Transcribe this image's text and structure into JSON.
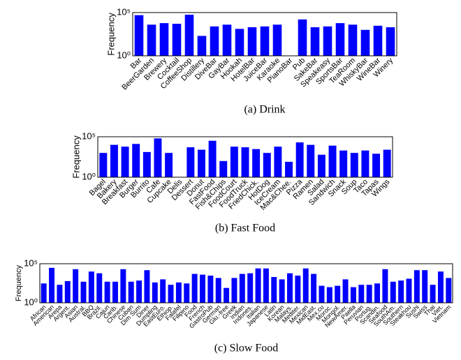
{
  "chart_data": [
    {
      "type": "bar",
      "caption": "(a) Drink",
      "ylabel": "Frequency",
      "log_scale": true,
      "color": "#0000ff",
      "ylim": [
        1,
        100000
      ],
      "yticks": [
        {
          "value": 1,
          "label": "10⁰"
        },
        {
          "value": 100000,
          "label": "10⁵"
        }
      ],
      "categories": [
        "Bar",
        "BeerGarden",
        "Brewery",
        "Cocktail",
        "CoffeeShop",
        "Distillery",
        "DiveBar",
        "GayBar",
        "Hookah",
        "HotelBar",
        "JuiceBar",
        "Karaoke",
        "PianoBar",
        "Pub",
        "SakeBar",
        "Speakeasy",
        "SportsBar",
        "TeaRoom",
        "WhiskyBar",
        "WineBar",
        "Winery"
      ],
      "values": [
        50000,
        4000,
        6000,
        5000,
        56000,
        200,
        2500,
        4000,
        1300,
        2000,
        2500,
        4000,
        1,
        16000,
        2000,
        2500,
        6000,
        4000,
        1000,
        3000,
        2000
      ]
    },
    {
      "type": "bar",
      "caption": "(b) Fast Food",
      "ylabel": "Frequency",
      "log_scale": true,
      "color": "#0000ff",
      "ylim": [
        1,
        100000
      ],
      "yticks": [
        {
          "value": 1,
          "label": "10⁰"
        },
        {
          "value": 100000,
          "label": "10⁵"
        }
      ],
      "categories": [
        "Bagel",
        "Bakery",
        "Breakfast",
        "Burger",
        "Burrito",
        "Cafe",
        "Cupcake",
        "Delis",
        "Dessert",
        "Donut",
        "FastFood",
        "Fish&Chips",
        "FoodCourt",
        "FoodTruck",
        "FriedChick.",
        "HotDog",
        "IceCream",
        "Mac&Chee.",
        "Pizza",
        "Ramen",
        "Salad",
        "Sandwich",
        "Snack",
        "Soup",
        "Taco",
        "Tapas",
        "Wings"
      ],
      "values": [
        1000,
        10000,
        6000,
        13000,
        1300,
        63000,
        1000,
        1,
        5000,
        2500,
        32000,
        100,
        6000,
        5000,
        3000,
        1000,
        6000,
        80,
        20000,
        10000,
        600,
        8000,
        2000,
        1000,
        2000,
        800,
        2500
      ]
    },
    {
      "type": "bar",
      "caption": "(c) Slow Food",
      "ylabel": "Frequency",
      "log_scale": true,
      "color": "#0000ff",
      "ylim": [
        1,
        100000
      ],
      "yticks": [
        {
          "value": 1,
          "label": "10⁰"
        },
        {
          "value": 100000,
          "label": "10⁵"
        }
      ],
      "categories": [
        "African",
        "American",
        "Arepa",
        "Argent.",
        "Asian",
        "Austral.",
        "BBQ",
        "Brazil.",
        "Cajun",
        "Carib.",
        "Chinese",
        "Cuban",
        "Dim Sum",
        "Diner",
        "Dumpling",
        "EastEuro.",
        "Ethiop.",
        "Falafel",
        "Filipino",
        "Food",
        "French",
        "GastroPub",
        "German",
        "Glu.-free",
        "Greek",
        "Indian",
        "Indones.",
        "Italian",
        "Japanese",
        "Latin",
        "Korean",
        "Malays.",
        "Mediter.",
        "Mexican",
        "MidEast.",
        "Mex.cu",
        "Moroc.",
        "Mongol.",
        "NewAmer.",
        "Paella",
        "Peruvian",
        "Portug.",
        "Scandin.",
        "Seafood",
        "SouthAm.",
        "Southern",
        "Steakhou",
        "Sushi",
        "Swiss",
        "Thai",
        "Viet.",
        "Vietnam"
      ],
      "values": [
        300,
        30000,
        200,
        600,
        20000,
        500,
        10000,
        6000,
        500,
        500,
        20000,
        500,
        700,
        15000,
        400,
        1000,
        200,
        400,
        300,
        5000,
        4000,
        3000,
        1500,
        80,
        1500,
        5000,
        6000,
        25000,
        25000,
        2000,
        1000,
        6000,
        3000,
        25000,
        5000,
        150,
        100,
        150,
        1000,
        100,
        200,
        200,
        300,
        20000,
        500,
        700,
        1200,
        15000,
        15000,
        200,
        10000,
        1500
      ]
    }
  ]
}
